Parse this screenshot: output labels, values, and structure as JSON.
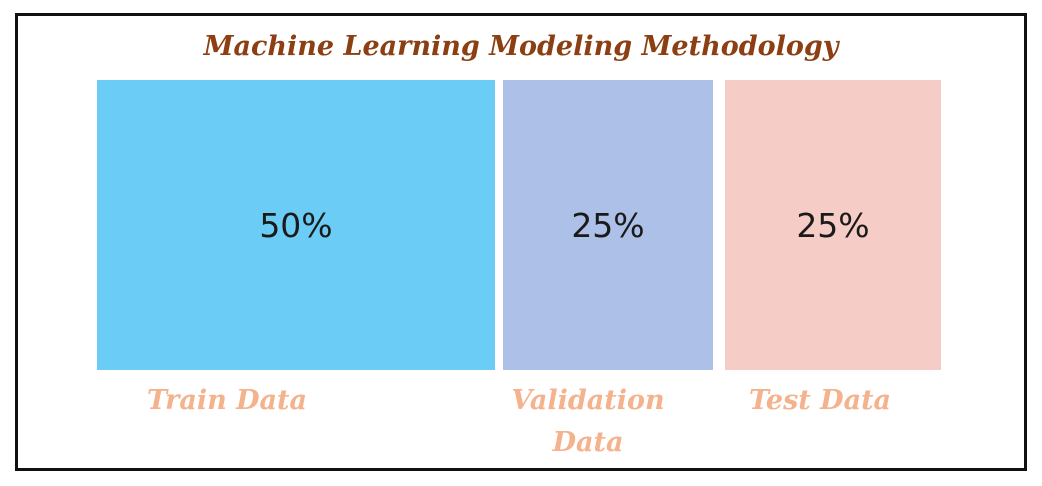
{
  "title": "Machine Learning Modeling Methodology",
  "segments": [
    {
      "label": "Train Data",
      "percent_text": "50%",
      "share": 0.5,
      "color": "#6bcdf5"
    },
    {
      "label": "Validation Data",
      "percent_text": "25%",
      "share": 0.25,
      "color": "#adc0e8"
    },
    {
      "label": "Test Data",
      "percent_text": "25%",
      "share": 0.25,
      "color": "#f6cdc6"
    }
  ],
  "colors": {
    "title": "#8b3f12",
    "label": "#f4b28d",
    "border": "#111111"
  }
}
